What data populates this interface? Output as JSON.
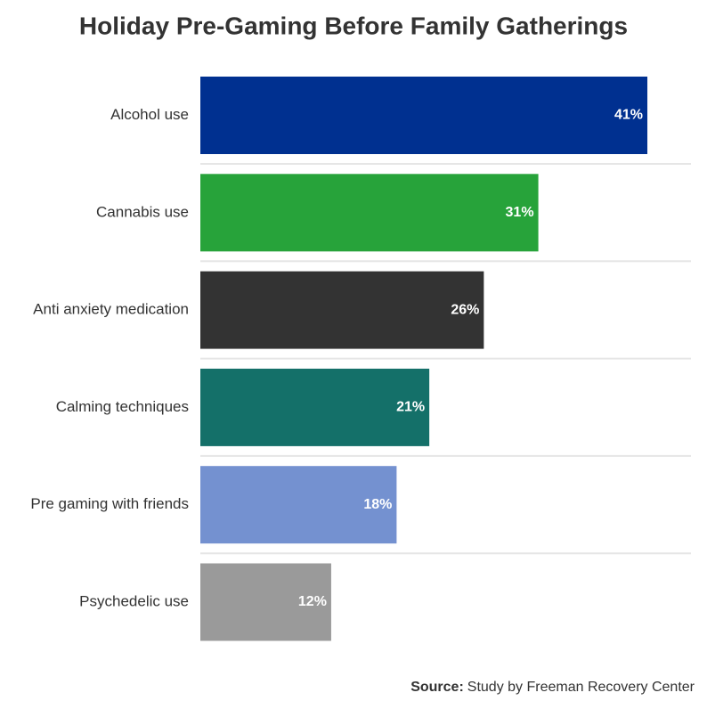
{
  "chart_data": {
    "type": "hbar",
    "title": "Holiday Pre-Gaming Before Family Gatherings",
    "categories": [
      "Alcohol use",
      "Cannabis use",
      "Anti anxiety medication",
      "Calming techniques",
      "Pre gaming with friends",
      "Psychedelic use"
    ],
    "values": [
      41,
      31,
      26,
      21,
      18,
      12
    ],
    "value_labels": [
      "41%",
      "31%",
      "26%",
      "21%",
      "18%",
      "12%"
    ],
    "colors": [
      "#003090",
      "#27a33a",
      "#333333",
      "#147069",
      "#7491d0",
      "#9a9a9a"
    ],
    "xlim": [
      0,
      45
    ],
    "source": {
      "label": "Source:",
      "text": "Study by Freeman Recovery Center"
    }
  }
}
